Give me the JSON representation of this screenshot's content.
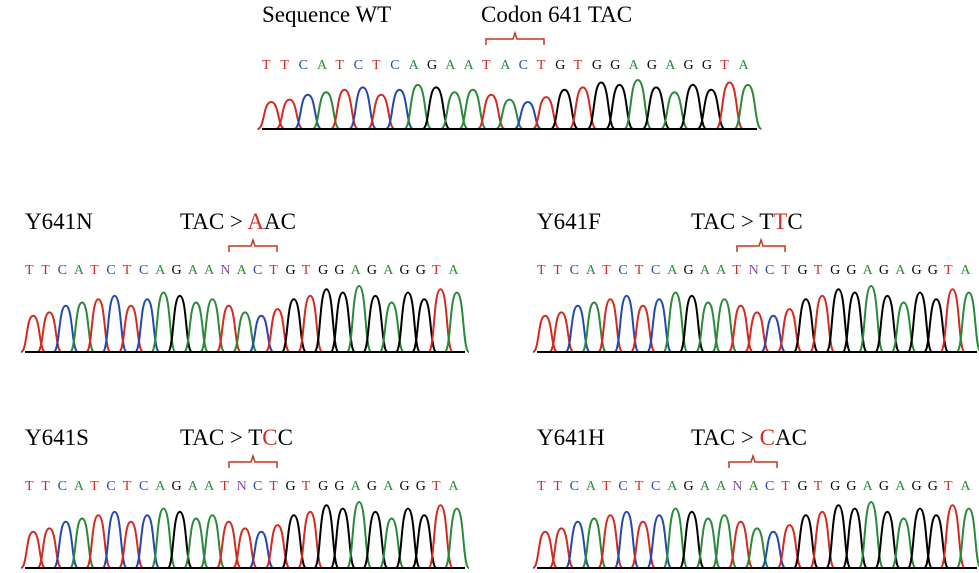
{
  "colors": {
    "A": "#2a8a3a",
    "T": "#d42a1f",
    "C": "#2348b0",
    "G": "#000000",
    "N": "#8a4aa6",
    "bracket": "#c8331f"
  },
  "panels": [
    {
      "id": "wt",
      "name": "Sequence WT",
      "codon_label": "Codon 641 TAC",
      "codon_prefix": "Codon 641 ",
      "codon_plain": "TAC",
      "codon_mut": "",
      "codon_rest": "",
      "sequence": "TTCATCTCAGAATACTGTGGAGAGGTA"
    },
    {
      "id": "y641n",
      "name": "Y641N",
      "codon_prefix": "TAC > ",
      "codon_plain": "",
      "codon_mut": "A",
      "codon_rest": "AC",
      "sequence": "TTCATCTCAGAANACTGTGGAGAGGTA"
    },
    {
      "id": "y641f",
      "name": "Y641F",
      "codon_prefix": "TAC > ",
      "codon_plain": "T",
      "codon_mut": "T",
      "codon_rest": "C",
      "sequence": "TTCATCTCAGAATNCTGTGGAGAGGTA"
    },
    {
      "id": "y641s",
      "name": "Y641S",
      "codon_prefix": "TAC > ",
      "codon_plain": "T",
      "codon_mut": "C",
      "codon_rest": "C",
      "sequence": "TTCATCTCAGAATNCTGTGGAGAGGTA"
    },
    {
      "id": "y641h",
      "name": "Y641H",
      "codon_prefix": "TAC > ",
      "codon_plain": "",
      "codon_mut": "C",
      "codon_rest": "AC",
      "sequence": "TTCATCTCAGAANACTGTGGAGAGGTA"
    }
  ]
}
